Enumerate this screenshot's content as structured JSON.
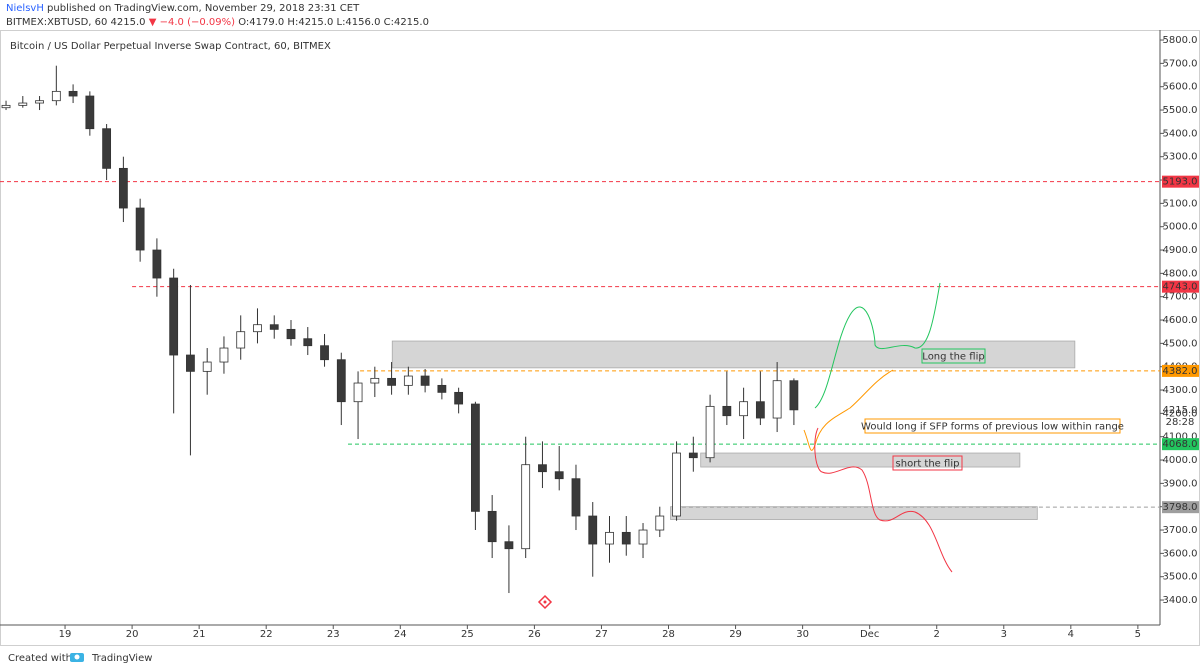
{
  "header": {
    "user": "NielsvH",
    "published": "published on TradingView.com, November 29, 2018 23:31 CET",
    "symbol": "BITMEX:XBTUSD, 60",
    "last": "4215.0",
    "change": "▼ −4.0 (−0.09%)",
    "ohlc": "O:4179.0 H:4215.0 L:4156.0 C:4215.0"
  },
  "chart_data": {
    "type": "candlestick",
    "title": "Bitcoin / US Dollar Perpetual Inverse Swap Contract, 60, BITMEX",
    "x": [
      18.12,
      18.37,
      18.62,
      18.87,
      19.12,
      19.37,
      19.62,
      19.87,
      20.12,
      20.37,
      20.62,
      20.87,
      21.12,
      21.37,
      21.62,
      21.87,
      22.12,
      22.37,
      22.62,
      22.87,
      23.12,
      23.37,
      23.62,
      23.87,
      24.12,
      24.37,
      24.62,
      24.87,
      25.12,
      25.37,
      25.62,
      25.87,
      26.12,
      26.37,
      26.62,
      26.87,
      27.12,
      27.37,
      27.62,
      27.87,
      28.12,
      28.37,
      28.62,
      28.87,
      29.12,
      29.37,
      29.62,
      29.87
    ],
    "open": [
      5510,
      5520,
      5530,
      5540,
      5580,
      5560,
      5420,
      5250,
      5080,
      4900,
      4780,
      4450,
      4380,
      4420,
      4480,
      4550,
      4580,
      4560,
      4520,
      4490,
      4430,
      4250,
      4330,
      4350,
      4320,
      4360,
      4320,
      4290,
      4240,
      3780,
      3650,
      3620,
      3980,
      3950,
      3920,
      3760,
      3640,
      3690,
      3640,
      3700,
      3760,
      4030,
      4010,
      4230,
      4190,
      4250,
      4180,
      4340
    ],
    "high": [
      5540,
      5560,
      5560,
      5690,
      5610,
      5580,
      5440,
      5300,
      5120,
      4950,
      4820,
      4750,
      4480,
      4530,
      4620,
      4650,
      4620,
      4600,
      4570,
      4540,
      4460,
      4380,
      4400,
      4420,
      4400,
      4390,
      4350,
      4310,
      4250,
      3850,
      3720,
      4100,
      4080,
      4060,
      3980,
      3820,
      3760,
      3760,
      3730,
      3800,
      4080,
      4100,
      4280,
      4380,
      4310,
      4380,
      4420,
      4350
    ],
    "low": [
      5500,
      5510,
      5500,
      5520,
      5530,
      5390,
      5200,
      5020,
      4850,
      4700,
      4200,
      4020,
      4280,
      4370,
      4430,
      4500,
      4520,
      4490,
      4450,
      4400,
      4150,
      4090,
      4270,
      4280,
      4280,
      4290,
      4260,
      4200,
      3700,
      3580,
      3430,
      3580,
      3880,
      3870,
      3700,
      3500,
      3560,
      3590,
      3580,
      3670,
      3740,
      3950,
      3990,
      4150,
      4090,
      4150,
      4120,
      4150
    ],
    "close": [
      5520,
      5530,
      5540,
      5580,
      5560,
      5420,
      5250,
      5080,
      4900,
      4780,
      4450,
      4380,
      4420,
      4480,
      4550,
      4580,
      4560,
      4520,
      4490,
      4430,
      4250,
      4330,
      4350,
      4320,
      4360,
      4320,
      4290,
      4240,
      3780,
      3650,
      3620,
      3980,
      3950,
      3920,
      3760,
      3640,
      3690,
      3640,
      3700,
      3760,
      4030,
      4010,
      4230,
      4190,
      4250,
      4180,
      4340,
      4215
    ],
    "up_color": "#ffffff",
    "down_color": "#3a3a3a",
    "wick_color": "#333333",
    "xlim": [
      18.03,
      35.33
    ],
    "xticks": [
      19,
      20,
      21,
      22,
      23,
      24,
      25,
      26,
      27,
      28,
      29,
      30,
      {
        "value": 31,
        "label": "Dec"
      },
      {
        "value": 32,
        "label": "2"
      },
      {
        "value": 33,
        "label": "3"
      },
      {
        "value": 34,
        "label": "4"
      },
      {
        "value": 35,
        "label": "5"
      }
    ],
    "ylim": [
      3293,
      5843
    ],
    "yticks": [
      {
        "value": 3400,
        "label": "3400.0"
      },
      {
        "value": 3500,
        "label": "3500.0"
      },
      {
        "value": 3600,
        "label": "3600.0"
      },
      {
        "value": 3700,
        "label": "3700.0"
      },
      {
        "value": 3800,
        "label": "3800.0"
      },
      {
        "value": 3900,
        "label": "3900.0"
      },
      {
        "value": 4000,
        "label": "4000.0"
      },
      {
        "value": 4100,
        "label": "4100.0"
      },
      {
        "value": 4200,
        "label": "4200.0"
      },
      {
        "value": 4300,
        "label": "4300.0"
      },
      {
        "value": 4400,
        "label": "4400.0"
      },
      {
        "value": 4500,
        "label": "4500.0"
      },
      {
        "value": 4600,
        "label": "4600.0"
      },
      {
        "value": 4700,
        "label": "4700.0"
      },
      {
        "value": 4800,
        "label": "4800.0"
      },
      {
        "value": 4900,
        "label": "4900.0"
      },
      {
        "value": 5000,
        "label": "5000.0"
      },
      {
        "value": 5100,
        "label": "5100.0"
      },
      {
        "value": 5200,
        "label": "5200.0"
      },
      {
        "value": 5300,
        "label": "5300.0"
      },
      {
        "value": 5400,
        "label": "5400.0"
      },
      {
        "value": 5500,
        "label": "5500.0"
      },
      {
        "value": 5600,
        "label": "5600.0"
      },
      {
        "value": 5700,
        "label": "5700.0"
      },
      {
        "value": 5800,
        "label": "5800.0"
      }
    ],
    "grid": false,
    "hlines": [
      {
        "value": 5193,
        "label": "5193.0",
        "color": "#f23645",
        "from": 18.03
      },
      {
        "value": 4743,
        "label": "4743.0",
        "color": "#f23645",
        "from": 20.0
      },
      {
        "value": 4382,
        "label": "4382.0",
        "color": "#ff9800",
        "from": 23.4
      },
      {
        "value": 4068,
        "label": "4068.0",
        "color": "#22c55e",
        "from": 23.22
      },
      {
        "value": 3798,
        "label": "3798.0",
        "color": "#9e9e9e",
        "from": 28.2
      }
    ],
    "zones": [
      {
        "y": [
          4395,
          4510
        ],
        "x": [
          23.88,
          34.06
        ]
      },
      {
        "y": [
          3970,
          4030
        ],
        "x": [
          28.48,
          33.24
        ]
      },
      {
        "y": [
          3745,
          3800
        ],
        "x": [
          28.03,
          33.5
        ]
      }
    ],
    "last_price": {
      "value": 4215,
      "label": "4215.0",
      "countdown": "28:28"
    },
    "annotations": [
      {
        "text": "Long the flip",
        "color": "#22c55e"
      },
      {
        "text": "Would long if SFP forms of previous low within range",
        "color": "#ff9800"
      },
      {
        "text": "short the flip",
        "color": "#f23645"
      }
    ]
  },
  "footer": {
    "created": "Created with",
    "brand": "TradingView"
  }
}
